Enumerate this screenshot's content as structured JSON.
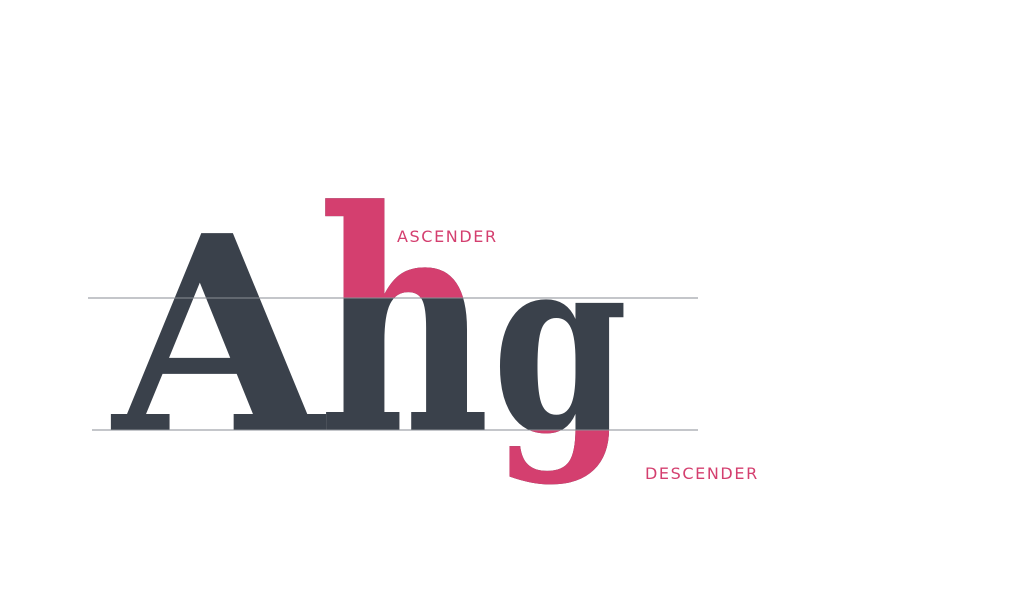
{
  "letters": {
    "a": "A",
    "h": "h",
    "g": "g"
  },
  "labels": {
    "ascender": "ASCENDER",
    "descender": "DESCENDER"
  },
  "colors": {
    "glyph": "#3a414b",
    "accent": "#d43f6f",
    "guide": "#8a8e94"
  }
}
